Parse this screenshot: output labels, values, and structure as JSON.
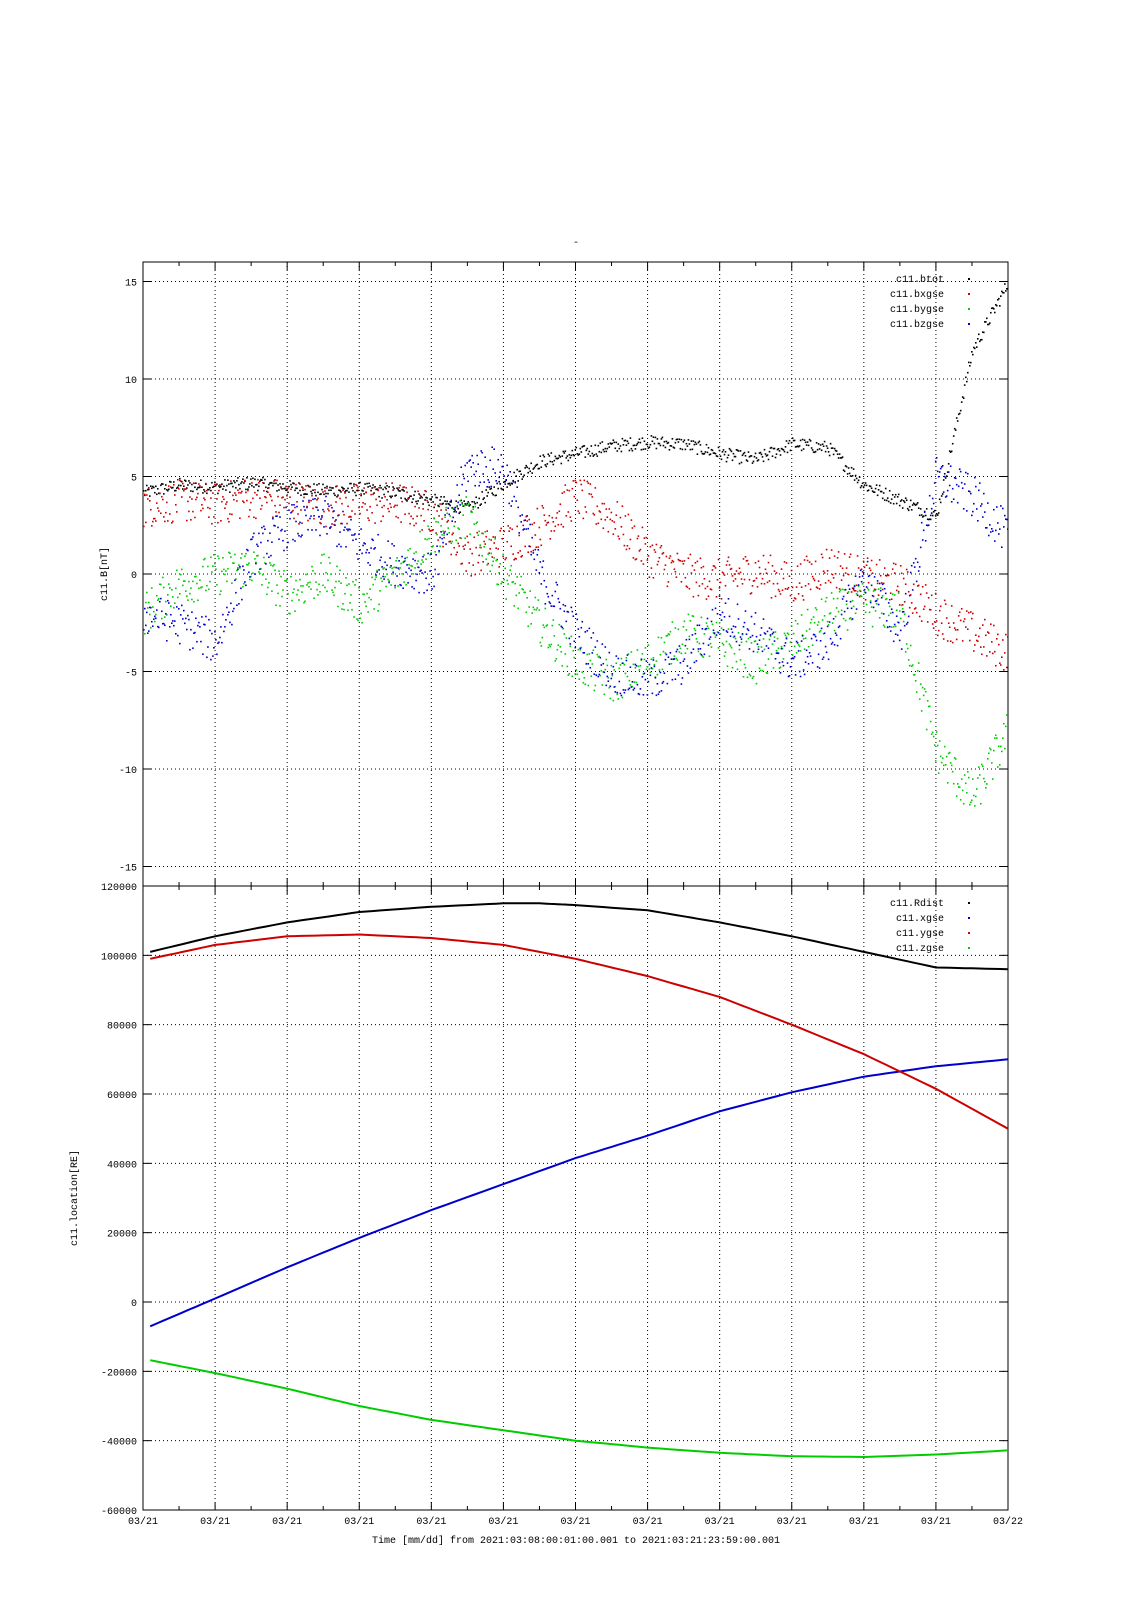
{
  "title": "-",
  "colors": {
    "black": "#000000",
    "red": "#cc0000",
    "blue": "#0000cc",
    "green": "#00cc00"
  },
  "xaxis": {
    "label": "Time [mm/dd]  from 2021:03:08:00:01:00.001  to  2021:03:21:23:59:00.001",
    "tick_labels": [
      "03/21",
      "03/21",
      "03/21",
      "03/21",
      "03/21",
      "03/21",
      "03/21",
      "03/21",
      "03/21",
      "03/21",
      "03/21",
      "03/21",
      "03/22"
    ]
  },
  "chart_data": [
    {
      "type": "scatter",
      "ylabel": "c11.B[nT]",
      "ylim": [
        -16,
        16
      ],
      "yticks": [
        -15,
        -10,
        -5,
        0,
        5,
        10,
        15
      ],
      "xlim": [
        0,
        12
      ],
      "grid": true,
      "legend_position": "top-right",
      "series": [
        {
          "name": "c11.btot",
          "color": "#000000",
          "x": [
            0,
            0.5,
            1,
            1.5,
            2,
            2.5,
            3,
            3.5,
            4,
            4.5,
            5,
            5.5,
            6,
            6.5,
            7,
            7.5,
            8,
            8.5,
            9,
            9.5,
            10,
            10.5,
            11,
            11.5,
            12
          ],
          "y": [
            4.2,
            4.6,
            4.5,
            4.7,
            4.5,
            4.3,
            4.4,
            4.2,
            3.8,
            3.4,
            4.7,
            5.8,
            6.2,
            6.6,
            6.8,
            6.7,
            6.2,
            5.9,
            6.7,
            6.5,
            4.6,
            3.8,
            3.0,
            11.5,
            15
          ]
        },
        {
          "name": "c11.bxgse",
          "color": "#cc0000",
          "x": [
            0,
            0.5,
            1,
            1.5,
            2,
            2.5,
            3,
            3.5,
            4,
            4.5,
            5,
            5.5,
            6,
            6.5,
            7,
            7.5,
            8,
            8.5,
            9,
            9.5,
            10,
            10.5,
            11,
            11.5,
            12
          ],
          "y": [
            3.5,
            3.8,
            3.6,
            4.0,
            3.8,
            3.5,
            3.6,
            3.7,
            3.2,
            1.0,
            1.5,
            2.5,
            4.0,
            3.0,
            1.0,
            0.0,
            -0.3,
            0.2,
            -0.5,
            0.5,
            -0.2,
            -0.5,
            -2.0,
            -3.0,
            -4.0
          ]
        },
        {
          "name": "c11.bygse",
          "color": "#00cc00",
          "x": [
            0,
            0.5,
            1,
            1.5,
            2,
            2.5,
            3,
            3.5,
            4,
            4.5,
            5,
            5.5,
            6,
            6.5,
            7,
            7.5,
            8,
            8.5,
            9,
            9.5,
            10,
            10.5,
            11,
            11.5,
            12
          ],
          "y": [
            -2.0,
            -0.5,
            0.0,
            0.5,
            -1.0,
            0.0,
            -1.5,
            0.0,
            2.0,
            3.0,
            0.0,
            -2.5,
            -4.5,
            -5.5,
            -4.5,
            -3.0,
            -3.5,
            -4.5,
            -3.5,
            -2.0,
            -1.5,
            -2.0,
            -9.0,
            -11.5,
            -8.0
          ]
        },
        {
          "name": "c11.bzgse",
          "color": "#0000cc",
          "x": [
            0,
            0.5,
            1,
            1.5,
            2,
            2.5,
            3,
            3.5,
            4,
            4.5,
            5,
            5.5,
            6,
            6.5,
            7,
            7.5,
            8,
            8.5,
            9,
            9.5,
            10,
            10.5,
            11,
            11.5,
            12
          ],
          "y": [
            -2.0,
            -2.5,
            -3.5,
            1.0,
            2.5,
            3.0,
            1.5,
            0.5,
            0.0,
            5.5,
            5.5,
            0.0,
            -3.0,
            -5.0,
            -5.5,
            -4.5,
            -2.0,
            -3.0,
            -4.5,
            -3.5,
            0.0,
            -3.0,
            5.0,
            4.0,
            2.0
          ]
        }
      ]
    },
    {
      "type": "line",
      "ylabel": "c11.location[RE]",
      "ylim": [
        -60000,
        120000
      ],
      "yticks": [
        -60000,
        -40000,
        -20000,
        0,
        20000,
        40000,
        60000,
        80000,
        100000,
        120000
      ],
      "xlim": [
        0,
        12
      ],
      "grid": true,
      "legend_position": "top-right",
      "series": [
        {
          "name": "c11.Rdist",
          "color": "#000000",
          "x": [
            0.1,
            1,
            2,
            3,
            4,
            5,
            5.5,
            6,
            7,
            8,
            9,
            10,
            11,
            12
          ],
          "y": [
            101000,
            105500,
            109500,
            112500,
            114000,
            115000,
            115000,
            114500,
            113000,
            109500,
            105500,
            101000,
            96500,
            96000
          ]
        },
        {
          "name": "c11.xgse",
          "color": "#0000cc",
          "x": [
            0.1,
            1,
            2,
            3,
            4,
            5,
            6,
            7,
            8,
            9,
            10,
            11,
            12
          ],
          "y": [
            -7000,
            1000,
            10000,
            18500,
            26500,
            34000,
            41500,
            48000,
            55000,
            60500,
            65000,
            68000,
            70000
          ]
        },
        {
          "name": "c11.ygse",
          "color": "#cc0000",
          "x": [
            0.1,
            1,
            2,
            3,
            4,
            5,
            6,
            7,
            8,
            9,
            10,
            11,
            12
          ],
          "y": [
            99000,
            103000,
            105500,
            106000,
            105000,
            103000,
            99000,
            94000,
            88000,
            80000,
            71500,
            61500,
            50000
          ]
        },
        {
          "name": "c11.zgse",
          "color": "#00cc00",
          "x": [
            0.1,
            1,
            2,
            3,
            4,
            5,
            6,
            7,
            8,
            9,
            10,
            11,
            12
          ],
          "y": [
            -16800,
            -20500,
            -25000,
            -30000,
            -34000,
            -37000,
            -40000,
            -42000,
            -43500,
            -44500,
            -44700,
            -44000,
            -42800
          ]
        }
      ]
    }
  ]
}
